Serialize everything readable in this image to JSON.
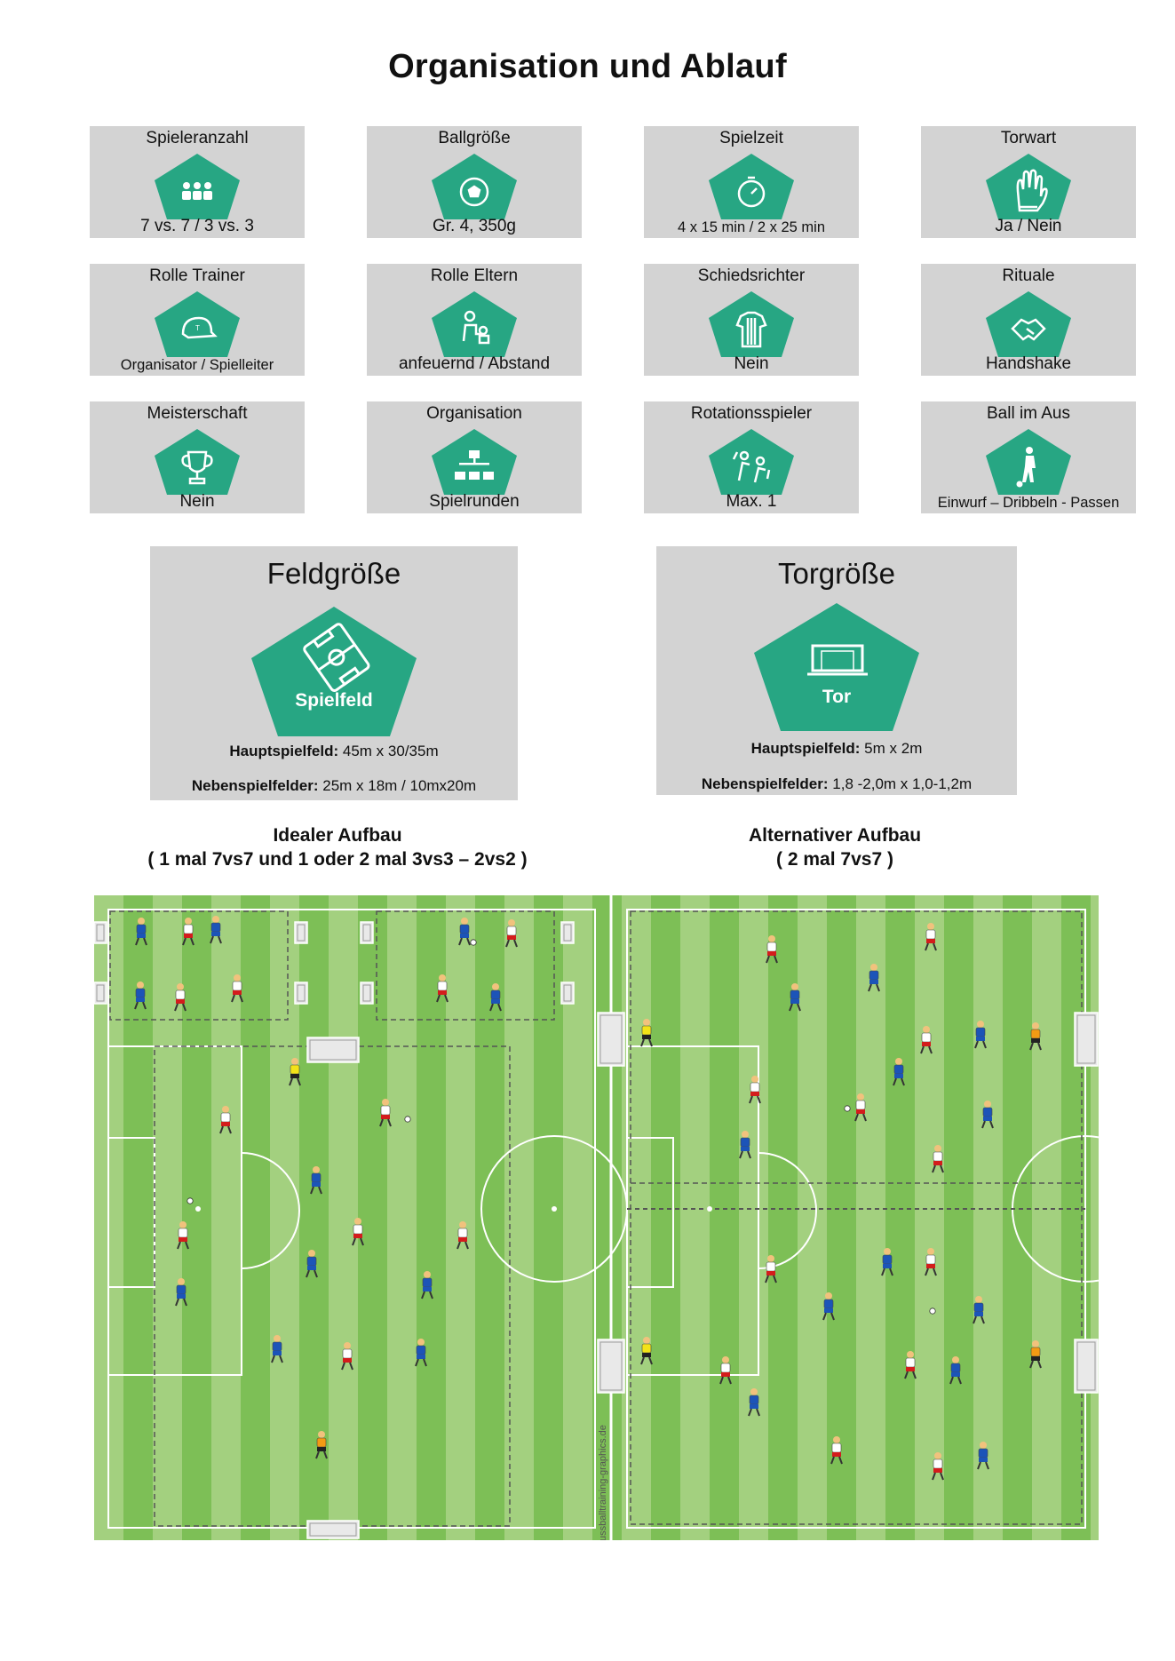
{
  "page": {
    "title": "Organisation und Ablauf"
  },
  "cards": [
    {
      "label": "Spieleranzahl",
      "value": "7 vs. 7 / 3 vs. 3",
      "icon": "players-icon"
    },
    {
      "label": "Ballgröße",
      "value": "Gr. 4, 350g",
      "icon": "ball-icon"
    },
    {
      "label": "Spielzeit",
      "value": "4 x 15 min / 2 x 25 min",
      "icon": "stopwatch-icon"
    },
    {
      "label": "Torwart",
      "value": "Ja / Nein",
      "icon": "goalkeeper-glove-icon"
    },
    {
      "label": "Rolle Trainer",
      "value": "Organisator / Spielleiter",
      "icon": "cap-icon"
    },
    {
      "label": "Rolle Eltern",
      "value": "anfeuernd / Abstand",
      "icon": "parent-icon"
    },
    {
      "label": "Schiedsrichter",
      "value": "Nein",
      "icon": "referee-shirt-icon"
    },
    {
      "label": "Rituale",
      "value": "Handshake",
      "icon": "handshake-icon"
    },
    {
      "label": "Meisterschaft",
      "value": "Nein",
      "icon": "trophy-icon"
    },
    {
      "label": "Organisation",
      "value": "Spielrunden",
      "icon": "org-chart-icon"
    },
    {
      "label": "Rotationsspieler",
      "value": "Max. 1",
      "icon": "substitution-icon"
    },
    {
      "label": "Ball im Aus",
      "value": "Einwurf – Dribbeln - Passen",
      "icon": "throw-in-icon"
    }
  ],
  "feldgroesse": {
    "title": "Feldgröße",
    "pentagon_label": "Spielfeld",
    "line1_label": "Hauptspielfeld:",
    "line1_value": "45m x 30/35m",
    "line2_label": "Nebenspielfelder:",
    "line2_value": "25m x 18m / 10mx20m"
  },
  "torgroesse": {
    "title": "Torgröße",
    "pentagon_label": "Tor",
    "line1_label": "Hauptspielfeld:",
    "line1_value": "5m x 2m",
    "line2_label": "Nebenspielfelder:",
    "line2_value": "1,8 -2,0m x 1,0-1,2m"
  },
  "captions": {
    "ideal_line1": "Idealer Aufbau",
    "ideal_line2": "( 1 mal 7vs7  und 1 oder 2 mal 3vs3 – 2vs2 )",
    "alt_line1": "Alternativer Aufbau",
    "alt_line2": "( 2 mal 7vs7 )"
  },
  "field": {
    "watermark": "fussballtraining-graphics.de"
  },
  "colors": {
    "accent": "#27a683",
    "card_bg": "#d3d3d3",
    "grass_light": "#9fcf7b",
    "grass_dark": "#7dbf56"
  }
}
